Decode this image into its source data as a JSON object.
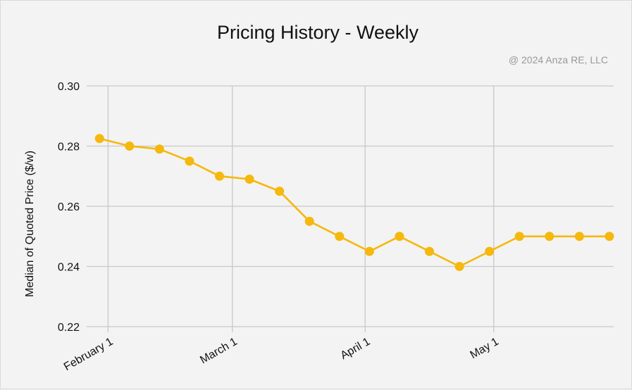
{
  "chart_data": {
    "type": "line",
    "title": "Pricing History - Weekly",
    "copyright": "@ 2024 Anza RE, LLC",
    "xlabel": "",
    "ylabel": "Median of Quoted Price ($/w)",
    "ylim": [
      0.22,
      0.3
    ],
    "yticks": [
      "0.30",
      "0.28",
      "0.26",
      "0.24",
      "0.22"
    ],
    "ytick_values": [
      0.3,
      0.28,
      0.26,
      0.24,
      0.22
    ],
    "xticks": [
      "February 1",
      "March 1",
      "April 1",
      "May 1"
    ],
    "xtick_dates": [
      "2024-02-01",
      "2024-03-01",
      "2024-04-01",
      "2024-05-01"
    ],
    "xlim": [
      "2024-01-27",
      "2024-05-29"
    ],
    "grid": true,
    "color": "#f5b80c",
    "series": [
      {
        "x": [
          "2024-01-30",
          "2024-02-06",
          "2024-02-13",
          "2024-02-20",
          "2024-02-27",
          "2024-03-05",
          "2024-03-12",
          "2024-03-19",
          "2024-03-26",
          "2024-04-02",
          "2024-04-09",
          "2024-04-16",
          "2024-04-23",
          "2024-04-30",
          "2024-05-07",
          "2024-05-14",
          "2024-05-21",
          "2024-05-28"
        ],
        "values": [
          0.2825,
          0.28,
          0.279,
          0.275,
          0.27,
          0.269,
          0.265,
          0.255,
          0.25,
          0.245,
          0.25,
          0.245,
          0.24,
          0.245,
          0.25,
          0.25,
          0.25,
          0.25
        ]
      }
    ]
  }
}
